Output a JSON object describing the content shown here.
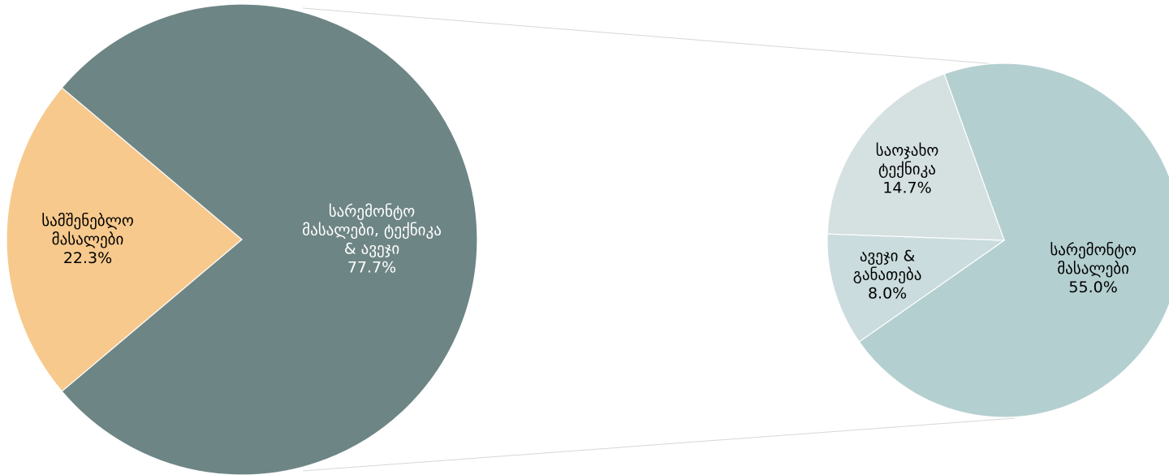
{
  "chart_data": {
    "type": "pie",
    "main_pie": {
      "slices": [
        {
          "label": "სამშენებლო მასალები",
          "lines": [
            "სამშენებლო",
            "მასალები"
          ],
          "value": 22.3,
          "value_label": "22.3%",
          "color": "#f7c98d",
          "text_color": "#000000"
        },
        {
          "label": "სარემონტო მასალები, ტექნიკა & ავეჯი",
          "lines": [
            "სარემონტო",
            "მასალები, ტექნიკა",
            "& ავეჯი"
          ],
          "value": 77.7,
          "value_label": "77.7%",
          "color": "#6e8585",
          "text_color": "#ffffff"
        }
      ]
    },
    "breakdown_pie": {
      "of": "სარემონტო მასალები, ტექნიკა & ავეჯი",
      "slices": [
        {
          "label": "სარემონტო მასალები",
          "lines": [
            "სარემონტო",
            "მასალები"
          ],
          "value": 55.0,
          "value_label": "55.0%",
          "color": "#b4cfd0",
          "text_color": "#000000"
        },
        {
          "label": "ავეჯი & განათება",
          "lines": [
            "ავეჯი &",
            "განათება"
          ],
          "value": 8.0,
          "value_label": "8.0%",
          "color": "#cadcdd",
          "text_color": "#000000"
        },
        {
          "label": "საოჯახო ტექნიკა",
          "lines": [
            "საოჯახო",
            "ტექნიკა"
          ],
          "value": 14.7,
          "value_label": "14.7%",
          "color": "#d5e0e0",
          "text_color": "#000000"
        }
      ]
    }
  }
}
